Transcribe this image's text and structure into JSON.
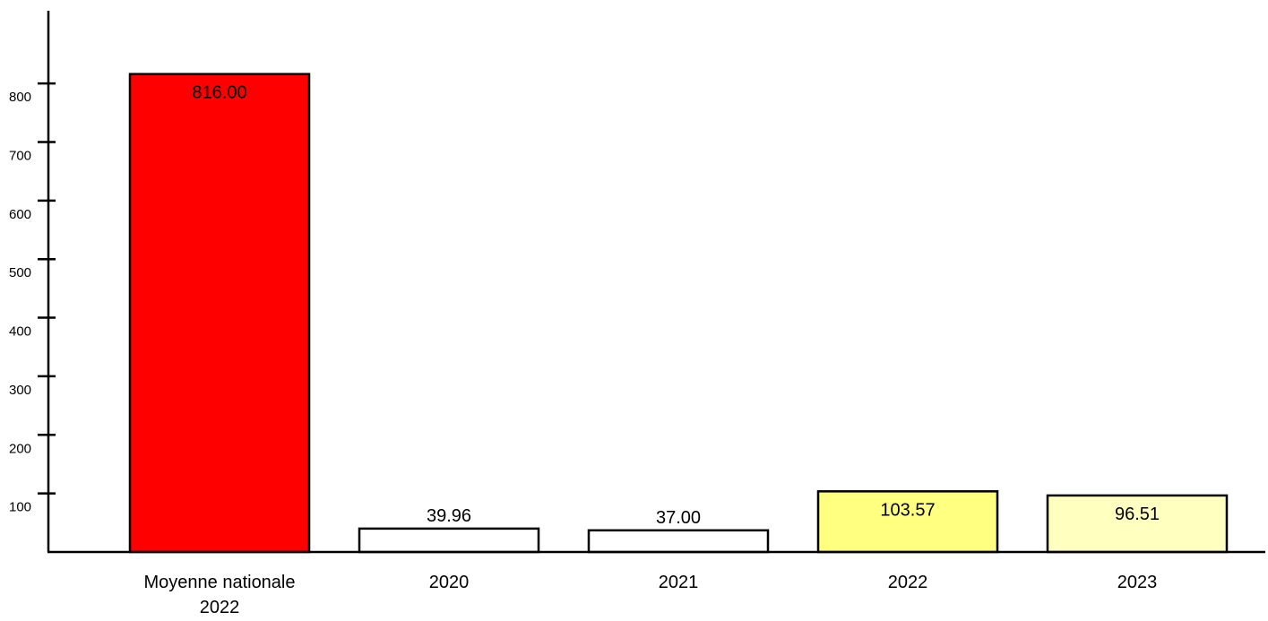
{
  "chart_data": {
    "type": "bar",
    "categories": [
      [
        "Moyenne nationale",
        "2022"
      ],
      [
        "2020"
      ],
      [
        "2021"
      ],
      [
        "2022"
      ],
      [
        "2023"
      ]
    ],
    "values": [
      816.0,
      39.96,
      37.0,
      103.57,
      96.51
    ],
    "value_labels": [
      "816.00",
      "39.96",
      "37.00",
      "103.57",
      "96.51"
    ],
    "bar_colors": [
      "#ff0000",
      "#ffffff",
      "#ffffff",
      "#ffff80",
      "#ffffbf"
    ],
    "yticks": [
      100,
      200,
      300,
      400,
      500,
      600,
      700,
      800
    ],
    "ytick_labels": [
      "100",
      "200",
      "300",
      "400",
      "500",
      "600",
      "700",
      "800"
    ],
    "title": "",
    "xlabel": "",
    "ylabel": "",
    "grid": false,
    "legend": "none"
  }
}
